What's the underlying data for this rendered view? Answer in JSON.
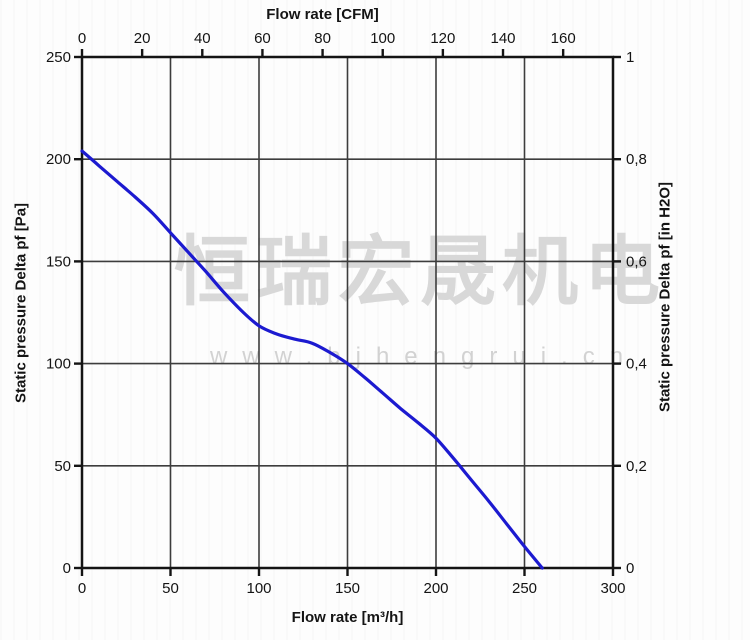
{
  "watermark": {
    "brand": "恒瑞宏晟机电",
    "url": "www.bjhengrui.cn"
  },
  "colors": {
    "curve": "#1c1ad0",
    "grid": "#3d3d3d",
    "axis": "#141414",
    "tick_text": "#141414",
    "watermark_brand": "#d8d8d8",
    "watermark_url": "#d2d2d2",
    "background": "#fdfdfd"
  },
  "chart_data": {
    "type": "line",
    "title": "",
    "grid": true,
    "legend": "none",
    "axes": {
      "top": {
        "label": "Flow rate [CFM]",
        "ticks": [
          0,
          20,
          40,
          60,
          80,
          100,
          120,
          140,
          160
        ],
        "unit_to_m3h": 1.699,
        "range_note": "axis spans same width as bottom axis 0-300 m3/h"
      },
      "bottom": {
        "label": "Flow rate [m³/h]",
        "ticks": [
          0,
          50,
          100,
          150,
          200,
          250,
          300
        ],
        "range": [
          0,
          300
        ]
      },
      "left": {
        "label": "Static pressure Delta pf [Pa]",
        "ticks": [
          0,
          50,
          100,
          150,
          200,
          250
        ],
        "range": [
          0,
          250
        ]
      },
      "right": {
        "label": "Static pressure Delta pf [in H2O]",
        "ticks": [
          {
            "label": "1",
            "value": 1.0
          },
          {
            "label": "0,8",
            "value": 0.8
          },
          {
            "label": "0,6",
            "value": 0.6
          },
          {
            "label": "0,4",
            "value": 0.4
          },
          {
            "label": "0,2",
            "value": 0.2
          },
          {
            "label": "0",
            "value": 0.0
          }
        ],
        "range": [
          0,
          1
        ]
      }
    },
    "series": [
      {
        "name": "static-pressure-curve",
        "x_unit": "m³/h",
        "y_unit": "Pa",
        "points": [
          [
            0,
            204
          ],
          [
            10,
            196.5
          ],
          [
            20,
            189
          ],
          [
            30,
            181.5
          ],
          [
            40,
            173.5
          ],
          [
            50,
            164
          ],
          [
            60,
            154.5
          ],
          [
            70,
            145
          ],
          [
            80,
            135
          ],
          [
            90,
            126
          ],
          [
            100,
            118.5
          ],
          [
            110,
            114.5
          ],
          [
            120,
            112
          ],
          [
            130,
            110
          ],
          [
            140,
            105.5
          ],
          [
            150,
            100
          ],
          [
            160,
            93
          ],
          [
            170,
            85.5
          ],
          [
            180,
            78
          ],
          [
            190,
            71
          ],
          [
            200,
            63.5
          ],
          [
            210,
            53.5
          ],
          [
            220,
            43
          ],
          [
            230,
            32.5
          ],
          [
            240,
            21.5
          ],
          [
            250,
            10.5
          ],
          [
            260,
            0
          ]
        ]
      }
    ]
  }
}
